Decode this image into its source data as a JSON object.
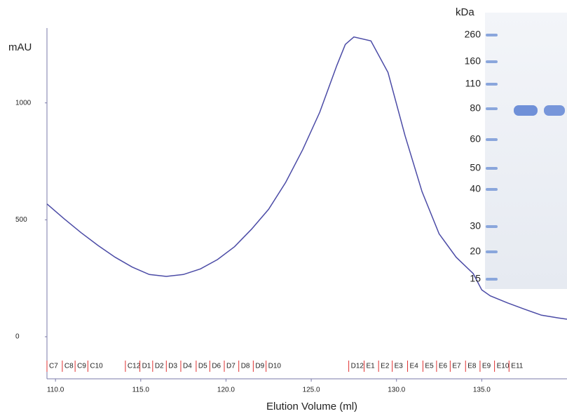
{
  "chart_data": {
    "type": "line",
    "x_label": "Elution Volume (ml)",
    "y_label": "mAU",
    "xlim": [
      109.5,
      140
    ],
    "ylim": [
      -180,
      1320
    ],
    "xticks": [
      {
        "value": 110,
        "label": "110.0"
      },
      {
        "value": 115,
        "label": "115.0"
      },
      {
        "value": 120,
        "label": "120.0"
      },
      {
        "value": 125,
        "label": "125.0"
      },
      {
        "value": 130,
        "label": "130.0"
      },
      {
        "value": 135,
        "label": "135.0"
      }
    ],
    "yticks": [
      0,
      500,
      1000
    ],
    "x": [
      109.5,
      110.5,
      111.5,
      112.5,
      113.5,
      114.5,
      115.5,
      116.5,
      117.5,
      118.5,
      119.5,
      120.5,
      121.5,
      122.5,
      123.5,
      124.5,
      125.5,
      126.5,
      127,
      127.5,
      128.5,
      129.5,
      130.5,
      131.5,
      132.5,
      133.5,
      134.5,
      135,
      135.5,
      136.5,
      137.5,
      138.5,
      139.5,
      140
    ],
    "series": [
      {
        "color": "#4b4ba6",
        "values": [
          568,
          505,
          445,
          390,
          340,
          298,
          266,
          258,
          266,
          290,
          330,
          385,
          460,
          545,
          660,
          800,
          960,
          1160,
          1250,
          1282,
          1265,
          1130,
          860,
          620,
          440,
          340,
          270,
          200,
          175,
          145,
          118,
          92,
          80,
          75
        ]
      }
    ],
    "fractions": {
      "labels": [
        "C7",
        "C8",
        "C9",
        "C10",
        "C12",
        "D1",
        "D2",
        "D3",
        "D4",
        "D5",
        "D6",
        "D7",
        "D8",
        "D9",
        "D10",
        "D12",
        "E1",
        "E2",
        "E3",
        "E4",
        "E5",
        "E6",
        "E7",
        "E8",
        "E9",
        "E10",
        "E11"
      ],
      "x": [
        109.5,
        110.4,
        111.15,
        111.9,
        114.1,
        114.95,
        115.7,
        116.5,
        117.35,
        118.25,
        119.05,
        119.9,
        120.75,
        121.6,
        122.35,
        127.2,
        128.1,
        128.95,
        129.75,
        130.65,
        131.55,
        132.35,
        133.15,
        134.05,
        134.9,
        135.75,
        136.6
      ]
    }
  },
  "gel": {
    "unit_label": "kDa",
    "markers": [
      260,
      160,
      110,
      80,
      60,
      50,
      40,
      30,
      20,
      15
    ]
  }
}
